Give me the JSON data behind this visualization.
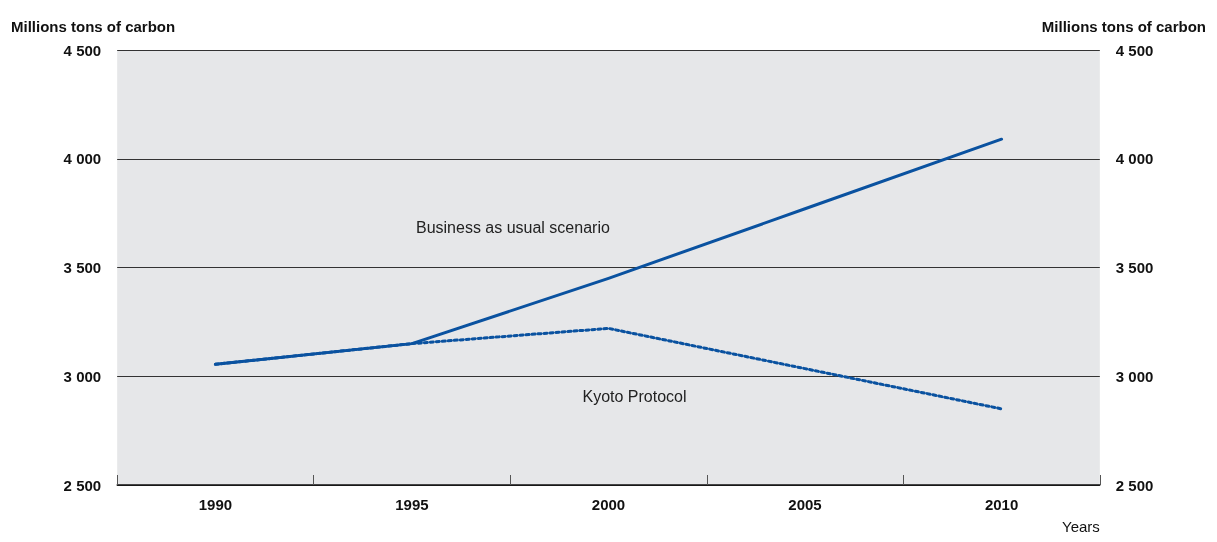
{
  "chart_data": {
    "type": "line",
    "categories": [
      "1990",
      "1995",
      "2000",
      "2005",
      "2010"
    ],
    "series": [
      {
        "name": "Business as usual scenario",
        "color": "#0a52a0",
        "line_style": "solid",
        "values": [
          3055,
          3150,
          3450,
          3770,
          4090
        ]
      },
      {
        "name": "Kyoto Protocol",
        "color": "#0a52a0",
        "line_style": "dotted",
        "values": [
          3055,
          3150,
          3220,
          3035,
          2850
        ]
      }
    ],
    "ylim": [
      2500,
      4500
    ],
    "yticks": [
      {
        "value": 2500,
        "label": "2 500"
      },
      {
        "value": 3000,
        "label": "3 000"
      },
      {
        "value": 3500,
        "label": "3 500"
      },
      {
        "value": 4000,
        "label": "4 000"
      },
      {
        "value": 4500,
        "label": "4 500"
      }
    ],
    "y2lim": [
      2500,
      4500
    ],
    "y2ticks": [
      {
        "value": 2500,
        "label": "2 500"
      },
      {
        "value": 3000,
        "label": "3 000"
      },
      {
        "value": 3500,
        "label": "3 500"
      },
      {
        "value": 4000,
        "label": "4 000"
      },
      {
        "value": 4500,
        "label": "4 500"
      }
    ],
    "ylabel": "Millions tons of carbon",
    "y2label": "Millions tons of carbon",
    "xlabel": "Years",
    "grid": "y",
    "marker": "none"
  }
}
